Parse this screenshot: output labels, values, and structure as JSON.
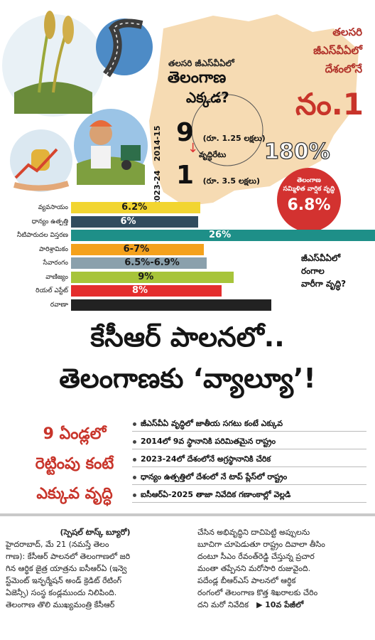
{
  "question": {
    "line1": "తలసరి జీఎస్‌వీఏలో",
    "line2": "తెలంగాణ",
    "line3": "ఎక్కడ?"
  },
  "right_headline": {
    "line1": "తలసరి",
    "line2": "జీఎస్‌వీఏలో",
    "line3": "దేశంలోనే",
    "rank": "నం.1"
  },
  "years": {
    "top": "2014-15",
    "bottom": "2023-24"
  },
  "rank_then": {
    "rank": "9",
    "note": "(రూ. 1.25 లక్షలు)"
  },
  "rank_now": {
    "rank": "1",
    "note": "(రూ. 3.5 లక్షలు)"
  },
  "growth": {
    "label": "వృద్ధిరేటు",
    "value": "180%"
  },
  "circle": {
    "line1": "తెలంగాణ",
    "line2": "సమ్మిళిత వార్షిక వృద్ధి",
    "value": "6.8%"
  },
  "side_question": {
    "line1": "జీఎస్‌వీఏలో",
    "line2": "రంగాల",
    "line3": "వారీగా వృద్ధి?"
  },
  "chart_data": {
    "type": "bar",
    "categories": [
      "వ్యవసాయం",
      "ధాన్యం ఉత్పత్తి",
      "నీటిపారుదల విస్తరణ",
      "పారిశ్రామికం",
      "సేవారంగం",
      "వాణిజ్యం",
      "రియల్ ఎస్టేట్",
      "రవాణా"
    ],
    "value_labels": [
      "6.2%",
      "6%",
      "26%",
      "6-7%",
      "6.5%-6.9%",
      "9%",
      "8%",
      ""
    ],
    "colors": [
      "#f2d531",
      "#314c5e",
      "#1e8f88",
      "#f4a11c",
      "#8aa0ac",
      "#a7c43a",
      "#e42e2e",
      "#222222"
    ],
    "values": [
      6.2,
      6,
      26,
      6.5,
      6.7,
      9,
      8,
      null
    ]
  },
  "headline": {
    "line1": "కేసీఆర్ పాలనలో..",
    "line2": "తెలంగాణకు ‘వ్యాల్యూ’!"
  },
  "red_block": {
    "line1": "9 ఏండ్లలో",
    "line2": "రెట్టింపు కంటే",
    "line3": "ఎక్కువ వృద్ధి"
  },
  "bullets": [
    "జీఎస్‌వీఏ వృద్ధిలో జాతీయ సగటు కంటే ఎక్కువ",
    "2014లో 9వ స్థానానికి పరిమితమైన రాష్ట్రం",
    "2023-24లో దేశంలోనే అగ్రస్థానానికి చేరిక",
    "ధాన్యం ఉత్పత్తిలో దేశంలో నే టాప్ ప్లేస్‌లో రాష్ట్రం",
    "ఐసీఆర్‌ఏ-2025 తాజా నివేదిక గణాంకాల్లో వెల్లడి"
  ],
  "article": {
    "bureau": "(స్పెషల్ టాస్క్ బ్యూరో)",
    "col1": [
      "హైదరాబాద్, మే 21 (నమస్తే తెలం",
      "గాణ): కేసీఆర్ పాలనలో తెలంగాణలో జరి",
      "గిన ఆర్థిక జైత్ర యాత్రను ఐసీఆర్‌ఏ (ఇన్వె",
      "స్ట్‌మెంట్ ఇన్ఫర్మేషన్ అండ్ క్రెడిట్ రేటింగ్",
      "ఏజెన్సీ) సంస్థ కండ్లముందు నిలిపింది.",
      "తెలంగాణ తొలి ముఖ్యమంత్రి కేసీఆర్"
    ],
    "col2": [
      "చేసిన అభివృద్ధిని దాచిపెట్టి అప్పులను",
      "బూచిగా చూపెడుతూ రాష్ట్రం దివాలా తీసిం",
      "దంటూ సీఎం రేవంత్‌రెడ్డి చేస్తున్న ప్రచార",
      "మంతా తప్పేనని మరోసారి రుజువైంది.",
      "పదేండ్ల బీఆర్‌ఎస్ పాలనలో ఆర్థిక",
      "రంగంలో తెలంగాణ కొత్త శిఖరాలకు చేరిం",
      "దని మరో నివేదిక"
    ],
    "continued": "10వ పేజీలో"
  }
}
